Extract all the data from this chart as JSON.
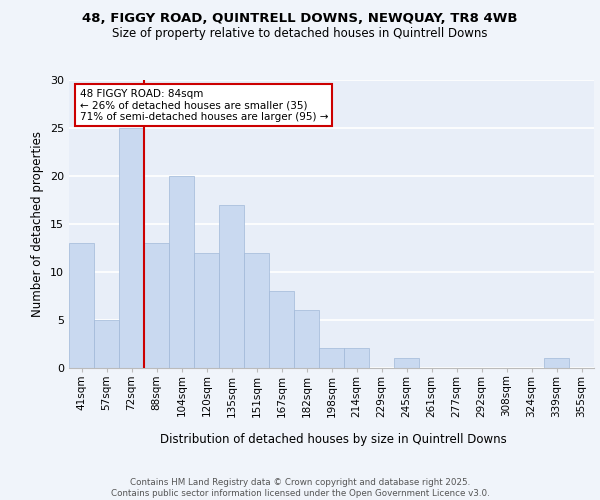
{
  "title1": "48, FIGGY ROAD, QUINTRELL DOWNS, NEWQUAY, TR8 4WB",
  "title2": "Size of property relative to detached houses in Quintrell Downs",
  "xlabel": "Distribution of detached houses by size in Quintrell Downs",
  "ylabel": "Number of detached properties",
  "categories": [
    "41sqm",
    "57sqm",
    "72sqm",
    "88sqm",
    "104sqm",
    "120sqm",
    "135sqm",
    "151sqm",
    "167sqm",
    "182sqm",
    "198sqm",
    "214sqm",
    "229sqm",
    "245sqm",
    "261sqm",
    "277sqm",
    "292sqm",
    "308sqm",
    "324sqm",
    "339sqm",
    "355sqm"
  ],
  "values": [
    13,
    5,
    25,
    13,
    20,
    12,
    17,
    12,
    8,
    6,
    2,
    2,
    0,
    1,
    0,
    0,
    0,
    0,
    0,
    1,
    0
  ],
  "bar_color": "#c9d9f0",
  "bar_edge_color": "#a0b8d8",
  "bg_color": "#e8eef8",
  "grid_color": "#ffffff",
  "ref_line_color": "#cc0000",
  "annotation_text": "48 FIGGY ROAD: 84sqm\n← 26% of detached houses are smaller (35)\n71% of semi-detached houses are larger (95) →",
  "annotation_box_color": "#ffffff",
  "annotation_box_edge": "#cc0000",
  "footnote": "Contains HM Land Registry data © Crown copyright and database right 2025.\nContains public sector information licensed under the Open Government Licence v3.0.",
  "fig_bg_color": "#f0f4fa",
  "ylim": [
    0,
    30
  ],
  "yticks": [
    0,
    5,
    10,
    15,
    20,
    25,
    30
  ]
}
